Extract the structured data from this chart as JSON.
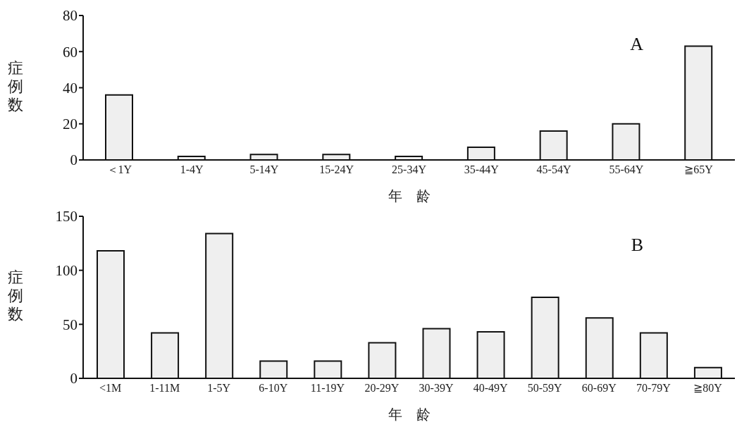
{
  "chart_data": [
    {
      "type": "bar",
      "categories": [
        "＜1Y",
        "1-4Y",
        "5-14Y",
        "15-24Y",
        "25-34Y",
        "35-44Y",
        "45-54Y",
        "55-64Y",
        "≧65Y"
      ],
      "values": [
        36,
        2,
        3,
        3,
        2,
        7,
        16,
        20,
        63
      ],
      "color": "#efefef",
      "ylim": [
        0,
        80
      ],
      "yticks": [
        0,
        20,
        40,
        60,
        80
      ],
      "xlabel": "年　龄",
      "ylabel": "症例数",
      "annotations": [
        "A"
      ]
    },
    {
      "type": "bar",
      "categories": [
        "<1M",
        "1-11M",
        "1-5Y",
        "6-10Y",
        "11-19Y",
        "20-29Y",
        "30-39Y",
        "40-49Y",
        "50-59Y",
        "60-69Y",
        "70-79Y",
        "≧80Y"
      ],
      "values": [
        118,
        42,
        134,
        16,
        16,
        33,
        46,
        43,
        75,
        56,
        42,
        10
      ],
      "color": "#efefef",
      "ylim": [
        0,
        150
      ],
      "yticks": [
        0,
        50,
        100,
        150
      ],
      "xlabel": "年　龄",
      "ylabel": "症例数",
      "annotations": [
        "B"
      ]
    }
  ]
}
